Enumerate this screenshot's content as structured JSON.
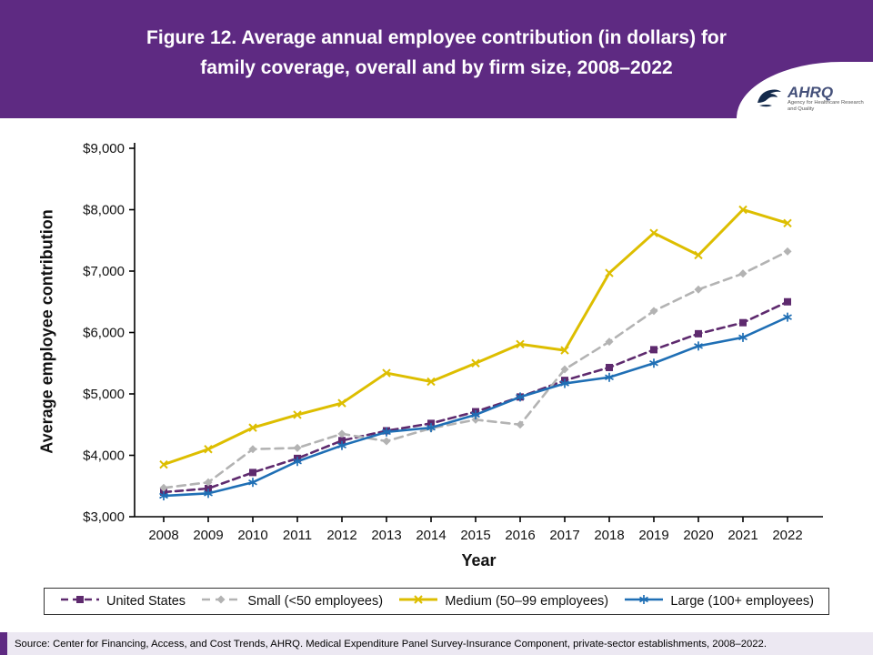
{
  "header": {
    "title_line1": "Figure 12. Average annual employee contribution (in dollars) for",
    "title_line2": "family coverage, overall and by firm size, 2008–2022",
    "logo": {
      "name": "AHRQ",
      "tagline": "Agency for Healthcare Research and Quality"
    }
  },
  "chart_data": {
    "type": "line",
    "title": "Figure 12. Average annual employee contribution (in dollars) for family coverage, overall and by firm size, 2008–2022",
    "xlabel": "Year",
    "ylabel": "Average employee  contribution",
    "ylim": [
      3000,
      9000
    ],
    "grid": false,
    "legend_position": "bottom",
    "categories": [
      "2008",
      "2009",
      "2010",
      "2011",
      "2012",
      "2013",
      "2014",
      "2015",
      "2016",
      "2017",
      "2018",
      "2019",
      "2020",
      "2021",
      "2022"
    ],
    "yticks": [
      "$3,000",
      "$4,000",
      "$5,000",
      "$6,000",
      "$7,000",
      "$8,000",
      "$9,000"
    ],
    "ytick_values": [
      3000,
      4000,
      5000,
      6000,
      7000,
      8000,
      9000
    ],
    "series": [
      {
        "name": "United States",
        "color": "#5e2a6e",
        "dash": "8 5",
        "width": 2.6,
        "marker": "square",
        "values": [
          3400,
          3460,
          3720,
          3950,
          4240,
          4400,
          4520,
          4710,
          4950,
          5220,
          5430,
          5720,
          5980,
          6160,
          6500
        ]
      },
      {
        "name": "Small (<50 employees)",
        "color": "#b3b3b3",
        "dash": "9 6",
        "width": 2.6,
        "marker": "diamond",
        "values": [
          3470,
          3560,
          4100,
          4120,
          4350,
          4230,
          4440,
          4580,
          4500,
          5400,
          5850,
          6350,
          6700,
          6960,
          7320
        ]
      },
      {
        "name": "Medium (50–99 employees)",
        "color": "#ddbe00",
        "dash": "",
        "width": 3,
        "marker": "x",
        "values": [
          3850,
          4100,
          4450,
          4660,
          4850,
          5340,
          5200,
          5500,
          5810,
          5710,
          6970,
          7620,
          7260,
          8000,
          7780
        ]
      },
      {
        "name": "Large (100+ employees)",
        "color": "#1f6fb5",
        "dash": "",
        "width": 2.6,
        "marker": "asterisk",
        "values": [
          3340,
          3380,
          3560,
          3900,
          4160,
          4380,
          4450,
          4660,
          4950,
          5170,
          5270,
          5500,
          5780,
          5920,
          6250
        ]
      }
    ]
  },
  "footer": {
    "source": "Source: Center for Financing, Access, and Cost Trends, AHRQ. Medical Expenditure Panel Survey-Insurance Component, private-sector establishments, 2008–2022."
  }
}
